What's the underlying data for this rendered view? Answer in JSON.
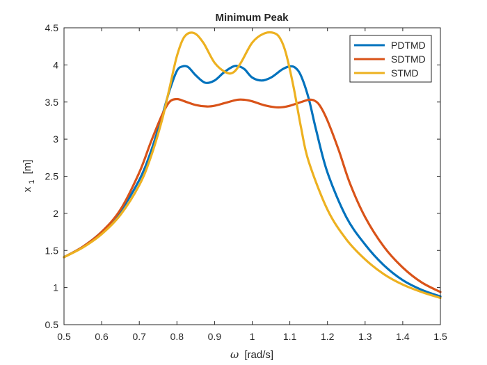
{
  "chart_data": {
    "type": "line",
    "title": "Minimum Peak",
    "xlabel_symbol": "ω",
    "xlabel_unit": "[rad/s]",
    "ylabel_main": "x",
    "ylabel_sub": "1",
    "ylabel_unit": "[m]",
    "xlim": [
      0.5,
      1.5
    ],
    "ylim": [
      0.5,
      4.5
    ],
    "x_ticks": [
      "0.5",
      "0.6",
      "0.7",
      "0.8",
      "0.9",
      "1",
      "1.1",
      "1.2",
      "1.3",
      "1.4",
      "1.5"
    ],
    "y_ticks": [
      "0.5",
      "1",
      "1.5",
      "2",
      "2.5",
      "3",
      "3.5",
      "4",
      "4.5"
    ],
    "grid": false,
    "legend_position": "top-right",
    "series": [
      {
        "name": "PDTMD",
        "color": "#0072BD",
        "x": [
          0.5,
          0.55,
          0.6,
          0.65,
          0.7,
          0.73,
          0.76,
          0.78,
          0.8,
          0.815,
          0.83,
          0.85,
          0.875,
          0.9,
          0.925,
          0.95,
          0.965,
          0.98,
          1.0,
          1.025,
          1.05,
          1.08,
          1.1,
          1.115,
          1.13,
          1.15,
          1.17,
          1.2,
          1.25,
          1.3,
          1.35,
          1.4,
          1.45,
          1.5
        ],
        "y": [
          1.41,
          1.55,
          1.75,
          2.03,
          2.45,
          2.82,
          3.3,
          3.65,
          3.92,
          3.98,
          3.97,
          3.86,
          3.76,
          3.79,
          3.9,
          3.98,
          3.98,
          3.94,
          3.83,
          3.79,
          3.83,
          3.94,
          3.98,
          3.96,
          3.85,
          3.55,
          3.12,
          2.55,
          1.95,
          1.58,
          1.3,
          1.1,
          0.97,
          0.88
        ]
      },
      {
        "name": "SDTMD",
        "color": "#D95319",
        "x": [
          0.5,
          0.55,
          0.6,
          0.65,
          0.7,
          0.73,
          0.76,
          0.78,
          0.8,
          0.82,
          0.85,
          0.88,
          0.9,
          0.93,
          0.96,
          0.98,
          1.0,
          1.03,
          1.06,
          1.08,
          1.1,
          1.13,
          1.15,
          1.165,
          1.18,
          1.2,
          1.23,
          1.26,
          1.3,
          1.35,
          1.4,
          1.45,
          1.5
        ],
        "y": [
          1.41,
          1.55,
          1.75,
          2.05,
          2.55,
          2.95,
          3.32,
          3.5,
          3.54,
          3.51,
          3.46,
          3.44,
          3.45,
          3.49,
          3.53,
          3.53,
          3.51,
          3.46,
          3.43,
          3.43,
          3.45,
          3.5,
          3.53,
          3.52,
          3.45,
          3.25,
          2.85,
          2.4,
          1.95,
          1.55,
          1.27,
          1.07,
          0.94
        ]
      },
      {
        "name": "STMD",
        "color": "#EDB120",
        "x": [
          0.5,
          0.55,
          0.6,
          0.65,
          0.7,
          0.73,
          0.76,
          0.78,
          0.8,
          0.82,
          0.845,
          0.87,
          0.9,
          0.93,
          0.95,
          0.97,
          1.0,
          1.03,
          1.058,
          1.075,
          1.09,
          1.11,
          1.13,
          1.15,
          1.2,
          1.25,
          1.3,
          1.35,
          1.4,
          1.45,
          1.5
        ],
        "y": [
          1.41,
          1.54,
          1.72,
          1.98,
          2.38,
          2.75,
          3.25,
          3.68,
          4.12,
          4.38,
          4.43,
          4.3,
          4.03,
          3.9,
          3.9,
          4.03,
          4.3,
          4.42,
          4.43,
          4.35,
          4.15,
          3.7,
          3.15,
          2.7,
          2.05,
          1.65,
          1.38,
          1.18,
          1.04,
          0.94,
          0.86
        ]
      }
    ]
  }
}
